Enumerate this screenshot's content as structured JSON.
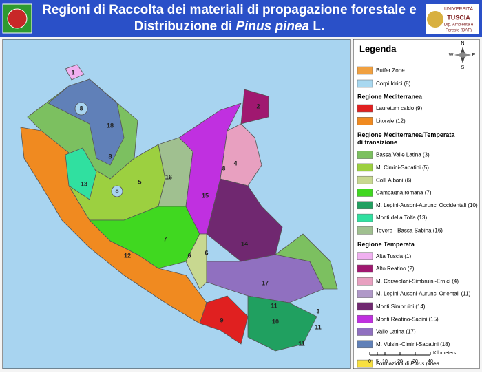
{
  "header": {
    "title_line1": "Regioni di Raccolta dei materiali di propagazione forestale e",
    "title_line2": [
      "Distribuzione di ",
      "Pinus pinea",
      " L."
    ],
    "logo": [
      "UNIVERSITÀ",
      "TUSCIA",
      "Dip. Ambiente e",
      "Foreste (DAF)"
    ]
  },
  "map": {
    "labels": [
      "1",
      "2",
      "8",
      "18",
      "8",
      "13",
      "8",
      "5",
      "16",
      "8",
      "4",
      "15",
      "7",
      "14",
      "6",
      "6",
      "12",
      "17",
      "11",
      "3",
      "10",
      "11",
      "9",
      "11"
    ]
  },
  "legend": {
    "title": "Legenda",
    "compass": [
      "N",
      "S",
      "E",
      "W"
    ],
    "items_top": [
      {
        "label": "Buffer Zone",
        "color": "#f0a040"
      },
      {
        "label": "Corpi Idrici (8)",
        "color": "#a8d8f0"
      }
    ],
    "groups": [
      {
        "heading": "Regione Mediterranea",
        "items": [
          {
            "label": "Lauretum caldo (9)",
            "color": "#e02020"
          },
          {
            "label": "Litorale (12)",
            "color": "#f08a20"
          }
        ]
      },
      {
        "heading": [
          "Regione Mediterranea/Temperata",
          "di transizione"
        ],
        "items": [
          {
            "label": "Bassa Valle Latina (3)",
            "color": "#7cc060"
          },
          {
            "label": "M. Cimini-Sabatini (5)",
            "color": "#9cd040"
          },
          {
            "label": "Colli Albani (6)",
            "color": "#c8d890"
          },
          {
            "label": "Campagna romana (7)",
            "color": "#40d820"
          },
          {
            "label": "M. Lepini-Ausoni-Aurunci Occidentali (10)",
            "color": "#20a060"
          },
          {
            "label": "Monti della Tolfa (13)",
            "color": "#30e0a0"
          },
          {
            "label": "Tevere - Bassa Sabina (16)",
            "color": "#a0c090"
          }
        ]
      },
      {
        "heading": "Regione Temperata",
        "items": [
          {
            "label": "Alta Tuscia (1)",
            "color": "#f0b0f0"
          },
          {
            "label": "Alto Reatino (2)",
            "color": "#a01870"
          },
          {
            "label": "M. Carseolani-Simbruini-Ernici (4)",
            "color": "#e8a0c0"
          },
          {
            "label": "M. Lepini-Ausoni-Aurunci Orientali (11)",
            "color": "#b098c8"
          },
          {
            "label": "Monti Simbruini (14)",
            "color": "#702870"
          },
          {
            "label": "Monti Reatino-Sabini (15)",
            "color": "#c030e0"
          },
          {
            "label": "Valle Latina (17)",
            "color": "#9070c0"
          },
          {
            "label": "M. Vulsini-Cimini-Sabatini (18)",
            "color": "#6080b8"
          }
        ]
      }
    ],
    "pinus": {
      "parts": [
        "Formazioni di ",
        "Pinus pinea"
      ],
      "color": "#f8e040"
    },
    "scale": {
      "ticks": [
        0,
        5,
        10,
        20,
        30,
        40
      ],
      "unit": "Kilometers"
    }
  }
}
